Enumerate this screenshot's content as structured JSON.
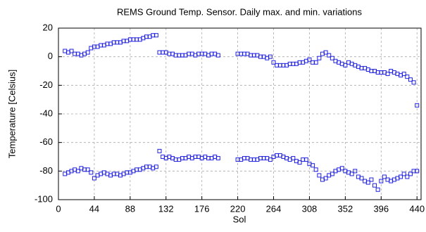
{
  "chart_data": {
    "type": "scatter",
    "title": "REMS Ground Temp. Sensor. Daily max. and min. variations",
    "x_label": "Sol",
    "y_label": "Temperature [Celsius]",
    "x": [
      8,
      12,
      16,
      20,
      24,
      28,
      32,
      36,
      40,
      44,
      48,
      52,
      56,
      60,
      64,
      68,
      72,
      76,
      80,
      84,
      88,
      92,
      96,
      100,
      104,
      108,
      112,
      116,
      120,
      124,
      128,
      132,
      136,
      140,
      144,
      148,
      152,
      156,
      160,
      164,
      168,
      172,
      176,
      180,
      184,
      188,
      192,
      196,
      220,
      224,
      228,
      232,
      236,
      240,
      244,
      248,
      252,
      256,
      260,
      264,
      268,
      272,
      276,
      280,
      284,
      288,
      292,
      296,
      300,
      304,
      308,
      312,
      316,
      320,
      324,
      328,
      332,
      336,
      340,
      344,
      348,
      352,
      356,
      360,
      364,
      368,
      372,
      376,
      380,
      384,
      388,
      392,
      396,
      400,
      404,
      408,
      412,
      416,
      420,
      424,
      428,
      432,
      436,
      440
    ],
    "series": [
      {
        "color": "#2020e0",
        "values": [
          4,
          3,
          4,
          2,
          2,
          1,
          2,
          3,
          6,
          7,
          7,
          8,
          8,
          9,
          9,
          10,
          10,
          10,
          11,
          11,
          12,
          12,
          12,
          12,
          13,
          14,
          14,
          15,
          15,
          3,
          3,
          3,
          2,
          2,
          1,
          1,
          1,
          1,
          2,
          2,
          1,
          2,
          2,
          2,
          1,
          2,
          2,
          1,
          2,
          2,
          2,
          2,
          1,
          1,
          1,
          0,
          0,
          -1,
          0,
          -4,
          -6,
          -6,
          -6,
          -6,
          -5,
          -5,
          -5,
          -4,
          -4,
          -3,
          -2,
          -4,
          -4,
          -1,
          2,
          3,
          1,
          -1,
          -3,
          -4,
          -5,
          -6,
          -4,
          -5,
          -6,
          -7,
          -8,
          -8,
          -9,
          -10,
          -10,
          -11,
          -11,
          -11,
          -12,
          -10,
          -11,
          -12,
          -13,
          -12,
          -14,
          -16,
          -18,
          -34
        ]
      },
      {
        "color": "#2020e0",
        "values": [
          -82,
          -81,
          -80,
          -79,
          -80,
          -78,
          -79,
          -79,
          -81,
          -85,
          -83,
          -82,
          -81,
          -82,
          -83,
          -82,
          -82,
          -83,
          -82,
          -81,
          -81,
          -80,
          -79,
          -79,
          -78,
          -77,
          -77,
          -78,
          -77,
          -66,
          -70,
          -71,
          -70,
          -71,
          -72,
          -72,
          -71,
          -71,
          -70,
          -71,
          -70,
          -70,
          -71,
          -70,
          -71,
          -71,
          -70,
          -71,
          -72,
          -72,
          -71,
          -71,
          -72,
          -72,
          -72,
          -71,
          -71,
          -71,
          -72,
          -70,
          -69,
          -69,
          -70,
          -71,
          -72,
          -71,
          -73,
          -74,
          -72,
          -72,
          -75,
          -76,
          -79,
          -83,
          -86,
          -85,
          -83,
          -82,
          -80,
          -79,
          -78,
          -80,
          -81,
          -82,
          -80,
          -84,
          -85,
          -87,
          -88,
          -86,
          -90,
          -93,
          -87,
          -84,
          -86,
          -87,
          -86,
          -85,
          -84,
          -82,
          -84,
          -82,
          -80,
          -80
        ]
      }
    ],
    "xlim": [
      0,
      445
    ],
    "ylim": [
      -100,
      20
    ],
    "xticks": [
      0,
      44,
      88,
      132,
      176,
      220,
      264,
      308,
      352,
      396,
      440
    ],
    "yticks": [
      -100,
      -80,
      -60,
      -40,
      -20,
      0,
      20
    ],
    "grid": true
  }
}
